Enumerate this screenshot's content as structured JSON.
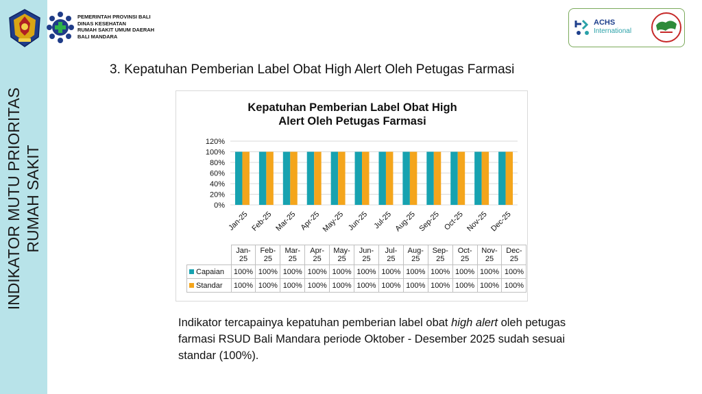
{
  "sidebar": {
    "title_line1": "INDIKATOR MUTU PRIORITAS",
    "title_line2": "RUMAH SAKIT"
  },
  "header": {
    "org_lines": [
      "PEMERINTAH PROVINSI BALI",
      "DINAS KESEHATAN",
      "RUMAH SAKIT UMUM DAERAH",
      "BALI MANDARA"
    ],
    "achs_name": "ACHS",
    "achs_sub": "International"
  },
  "heading": "3. Kepatuhan Pemberian Label Obat High Alert Oleh Petugas Farmasi",
  "colors": {
    "capaian": "#17a2b0",
    "standar": "#f4a51c",
    "sidebar": "#b8e3e9"
  },
  "chart_data": {
    "type": "bar",
    "title_line1": "Kepatuhan Pemberian Label Obat High",
    "title_line2": "Alert Oleh Petugas Farmasi",
    "categories": [
      "Jan-25",
      "Feb-25",
      "Mar-25",
      "Apr-25",
      "May-25",
      "Jun-25",
      "Jul-25",
      "Aug-25",
      "Sep-25",
      "Oct-25",
      "Nov-25",
      "Dec-25"
    ],
    "table_headers": [
      {
        "a": "Jan-",
        "b": "25"
      },
      {
        "a": "Feb-",
        "b": "25"
      },
      {
        "a": "Mar-",
        "b": "25"
      },
      {
        "a": "Apr-",
        "b": "25"
      },
      {
        "a": "May-",
        "b": "25"
      },
      {
        "a": "Jun-",
        "b": "25"
      },
      {
        "a": "Jul-",
        "b": "25"
      },
      {
        "a": "Aug-",
        "b": "25"
      },
      {
        "a": "Sep-",
        "b": "25"
      },
      {
        "a": "Oct-",
        "b": "25"
      },
      {
        "a": "Nov-",
        "b": "25"
      },
      {
        "a": "Dec-",
        "b": "25"
      }
    ],
    "series": [
      {
        "name": "Capaian",
        "values": [
          100,
          100,
          100,
          100,
          100,
          100,
          100,
          100,
          100,
          100,
          100,
          100
        ],
        "labels": [
          "100%",
          "100%",
          "100%",
          "100%",
          "100%",
          "100%",
          "100%",
          "100%",
          "100%",
          "100%",
          "100%",
          "100%"
        ]
      },
      {
        "name": "Standar",
        "values": [
          100,
          100,
          100,
          100,
          100,
          100,
          100,
          100,
          100,
          100,
          100,
          100
        ],
        "labels": [
          "100%",
          "100%",
          "100%",
          "100%",
          "100%",
          "100%",
          "100%",
          "100%",
          "100%",
          "100%",
          "100%",
          "100%"
        ]
      }
    ],
    "yticks": [
      "0%",
      "20%",
      "40%",
      "60%",
      "80%",
      "100%",
      "120%"
    ],
    "ylim": [
      0,
      120
    ],
    "grid": true,
    "legend": "data-table"
  },
  "paragraph": {
    "before": "Indikator tercapainya kepatuhan pemberian label obat ",
    "italic": "high alert",
    "after": " oleh petugas farmasi RSUD Bali Mandara periode Oktober - Desember 2025 sudah sesuai standar (100%)."
  }
}
